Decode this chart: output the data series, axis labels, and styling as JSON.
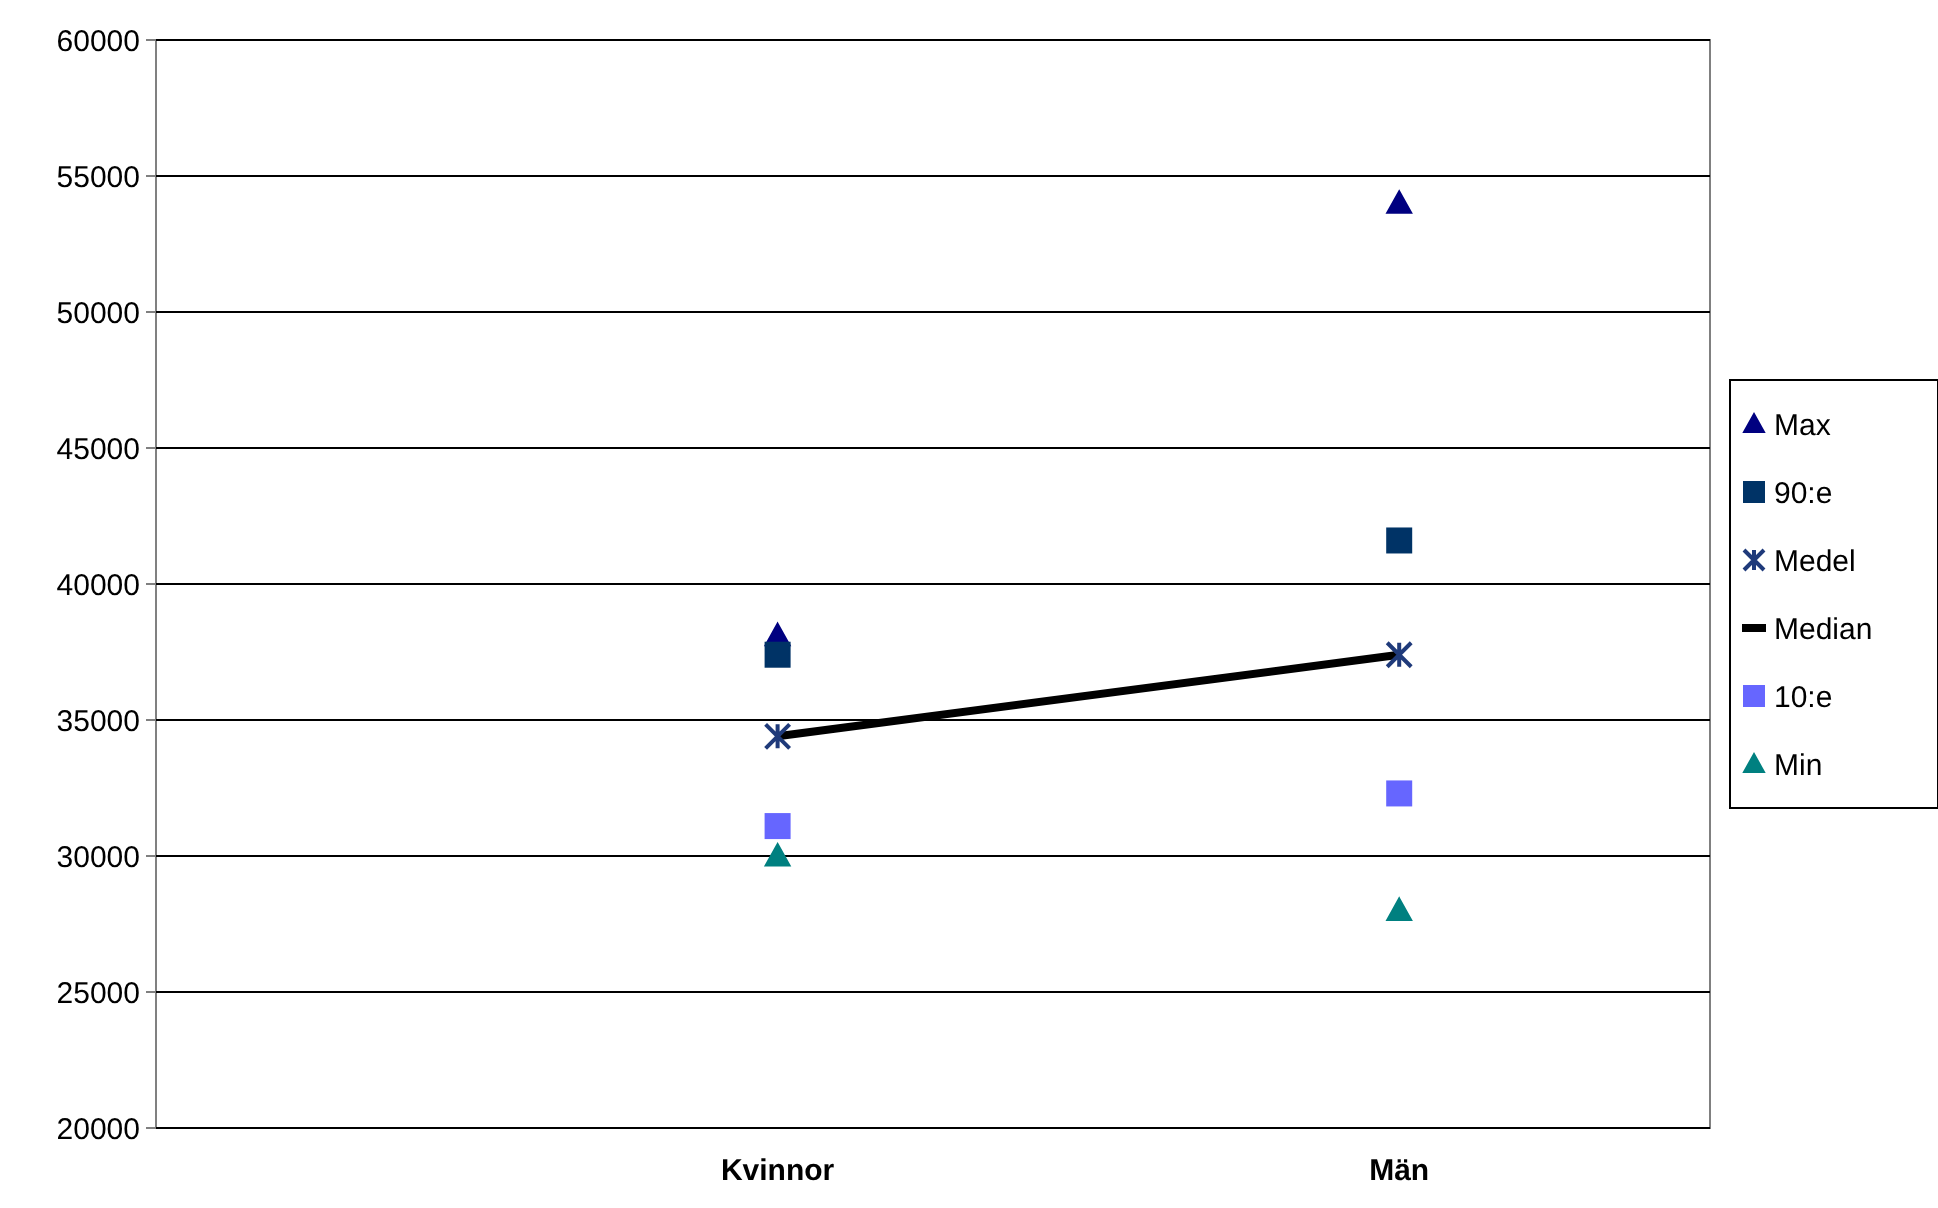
{
  "chart_data": {
    "type": "scatter",
    "categories": [
      "Kvinnor",
      "Män"
    ],
    "ylim": [
      20000,
      60000
    ],
    "yticks": [
      20000,
      25000,
      30000,
      35000,
      40000,
      45000,
      50000,
      55000,
      60000
    ],
    "grid": "y",
    "legend": "right",
    "series": [
      {
        "name": "Max",
        "color": "#000080",
        "marker": "triangle",
        "values": [
          38100,
          54000
        ]
      },
      {
        "name": "90:e",
        "color": "#003366",
        "marker": "square",
        "values": [
          37400,
          41600
        ]
      },
      {
        "name": "Medel",
        "color": "#1f3a7a",
        "marker": "cross",
        "values": [
          34400,
          37400
        ]
      },
      {
        "name": "Median",
        "color": "#000000",
        "type": "line",
        "marker": "none",
        "values": [
          34400,
          37400
        ]
      },
      {
        "name": "10:e",
        "color": "#6666ff",
        "marker": "square",
        "values": [
          31100,
          32300
        ]
      },
      {
        "name": "Min",
        "color": "#008080",
        "marker": "triangle",
        "values": [
          30000,
          28000
        ]
      }
    ]
  }
}
